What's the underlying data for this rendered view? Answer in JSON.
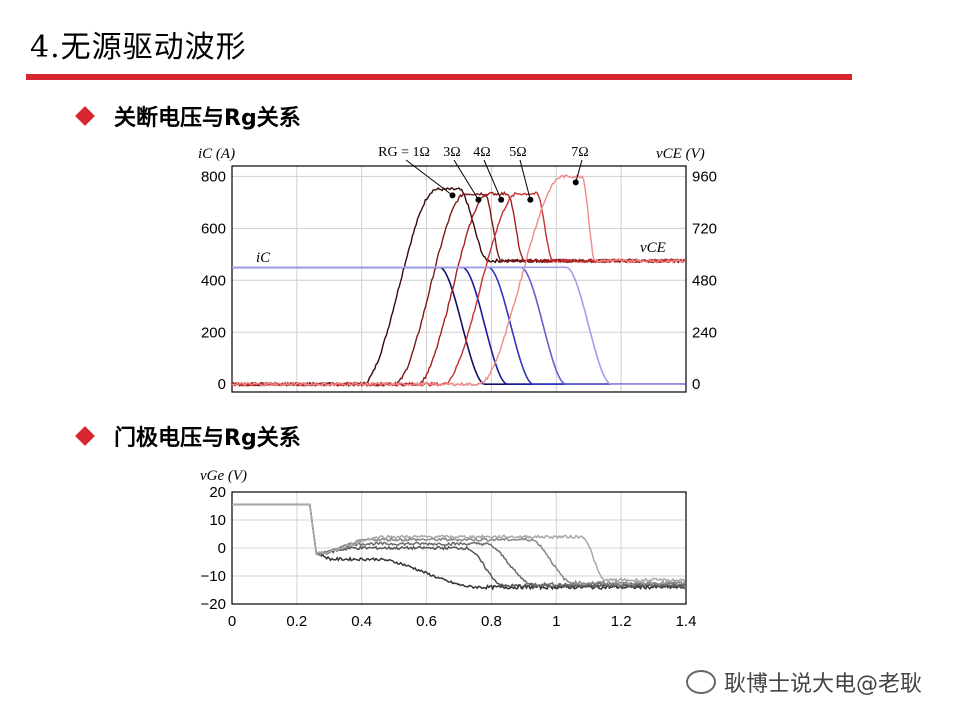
{
  "slide": {
    "title": "4.无源驱动波形",
    "section1": "关断电压与Rg关系",
    "section2": "门极电压与Rg关系",
    "watermark": "耿博士说大电@老耿"
  },
  "chart_data": [
    {
      "type": "line",
      "ylabel_left": "iC (A)",
      "ylabel_right": "vCE (V)",
      "left_ticks": [
        0,
        200,
        400,
        600,
        800
      ],
      "right_ticks": [
        0,
        240,
        480,
        720,
        960
      ],
      "ylim_left": [
        -30,
        840
      ],
      "ylim_right": [
        -36,
        1008
      ],
      "grid": true,
      "annotations": [
        "RG = 1Ω",
        "3Ω",
        "4Ω",
        "5Ω",
        "7Ω",
        "iC",
        "vCE"
      ],
      "series": [
        {
          "name": "RG = 1Ω",
          "color_vce": "#3a0a0a",
          "color_ic": "#101066",
          "vce_rise": [
            0.4,
            0.63
          ],
          "vce_peak": [
            0.66,
            900,
            0.7
          ],
          "vce_settle": 0.79,
          "ic_fall": [
            0.64,
            0.78
          ]
        },
        {
          "name": "3Ω",
          "color_vce": "#7a1a1a",
          "color_ic": "#1a1aa0",
          "vce_rise": [
            0.5,
            0.72
          ],
          "vce_peak": [
            0.74,
            880,
            0.78
          ],
          "vce_settle": 0.83,
          "ic_fall": [
            0.71,
            0.85
          ]
        },
        {
          "name": "4Ω",
          "color_vce": "#a81f1f",
          "color_ic": "#3434c0",
          "vce_rise": [
            0.57,
            0.79
          ],
          "vce_peak": [
            0.81,
            880,
            0.85
          ],
          "vce_settle": 0.9,
          "ic_fall": [
            0.79,
            0.93
          ]
        },
        {
          "name": "5Ω",
          "color_vce": "#c73030",
          "color_ic": "#6060d0",
          "vce_rise": [
            0.65,
            0.88
          ],
          "vce_peak": [
            0.9,
            880,
            0.94
          ],
          "vce_settle": 0.99,
          "ic_fall": [
            0.89,
            1.03
          ]
        },
        {
          "name": "7Ω",
          "color_vce": "#ee8a8a",
          "color_ic": "#a0a0e8",
          "vce_rise": [
            0.76,
            1.02
          ],
          "vce_peak": [
            1.04,
            960,
            1.08
          ],
          "vce_settle": 1.12,
          "ic_fall": [
            1.03,
            1.17
          ]
        }
      ],
      "ic_initial": 450,
      "vce_final": 570
    },
    {
      "type": "line",
      "ylabel": "vGe (V)",
      "x_ticks": [
        "0",
        "0.2",
        "0.4",
        "0.6",
        "0.8",
        "1",
        "1.2",
        "1.4"
      ],
      "y_ticks": [
        "20",
        "10",
        "0",
        "−10",
        "−20"
      ],
      "xlim": [
        0,
        1.4
      ],
      "ylim": [
        -20,
        20
      ],
      "grid": true,
      "series": [
        {
          "color": "#333333",
          "plateau": -4,
          "drop_start": 0.44,
          "drop_end": 0.76,
          "final": -14
        },
        {
          "color": "#555555",
          "plateau": 0,
          "drop_start": 0.72,
          "drop_end": 0.84,
          "final": -13.5
        },
        {
          "color": "#6c6c6c",
          "plateau": 1.5,
          "drop_start": 0.78,
          "drop_end": 0.93,
          "final": -13
        },
        {
          "color": "#888888",
          "plateau": 3,
          "drop_start": 0.92,
          "drop_end": 1.05,
          "final": -12.5
        },
        {
          "color": "#a8a8a8",
          "plateau": 4,
          "drop_start": 1.08,
          "drop_end": 1.15,
          "final": -11.5
        }
      ],
      "initial": 15.5,
      "switch_time": 0.24
    }
  ]
}
